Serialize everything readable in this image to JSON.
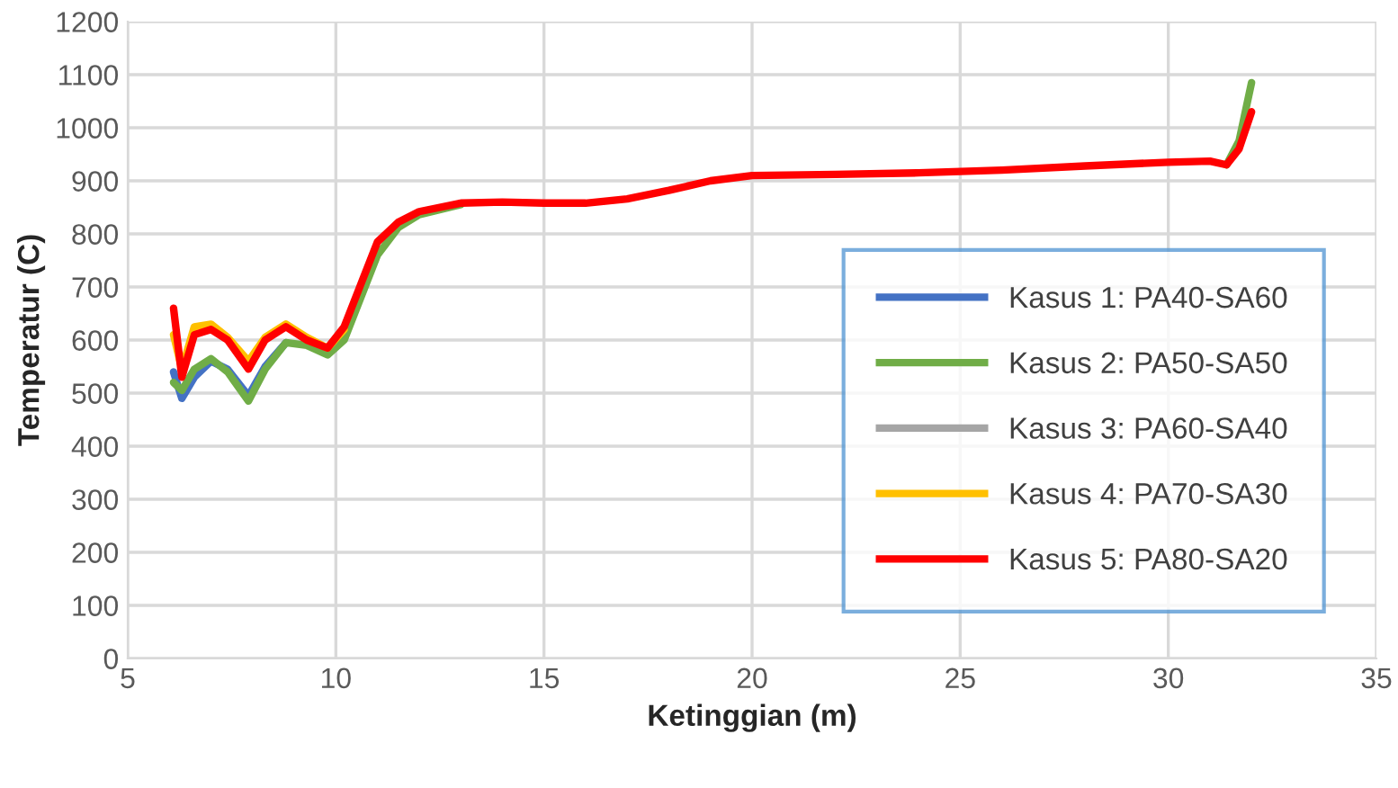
{
  "chart_data": {
    "type": "line",
    "xlabel": "Ketinggian (m)",
    "ylabel": "Temperatur (C)",
    "xlim": [
      5,
      35
    ],
    "xticks": [
      5,
      10,
      15,
      20,
      25,
      30,
      35
    ],
    "ylim": [
      0,
      1200
    ],
    "yticks": [
      0,
      100,
      200,
      300,
      400,
      500,
      600,
      700,
      800,
      900,
      1000,
      1100,
      1200
    ],
    "grid": true,
    "legend": "bottom right",
    "marker": "none",
    "line_style": "solid",
    "x": [
      6.1,
      6.3,
      6.6,
      7,
      7.4,
      7.9,
      8.3,
      8.8,
      9.3,
      9.8,
      10.2,
      10.6,
      11,
      11.5,
      12,
      13,
      14,
      15,
      16,
      17,
      18,
      19,
      20,
      22,
      24,
      26,
      28,
      30,
      31,
      31.4,
      31.7,
      32
    ],
    "series": [
      {
        "name": "Kasus 1: PA40-SA60",
        "color": "#4472c4",
        "values": [
          540,
          490,
          530,
          560,
          545,
          495,
          550,
          595,
          null,
          null,
          null,
          null,
          null,
          null,
          null,
          null,
          null,
          null,
          null,
          null,
          null,
          null,
          null,
          null,
          null,
          null,
          null,
          null,
          null,
          null,
          null,
          null
        ]
      },
      {
        "name": "Kasus 2: PA50-SA50",
        "color": "#70ad47",
        "values": [
          520,
          505,
          545,
          565,
          540,
          485,
          545,
          595,
          590,
          572,
          600,
          680,
          760,
          812,
          836,
          855,
          null,
          null,
          null,
          null,
          null,
          null,
          null,
          null,
          null,
          null,
          null,
          null,
          null,
          930,
          975,
          1085
        ]
      },
      {
        "name": "Kasus 3: PA60-SA40",
        "color": "#a5a5a5",
        "values": [
          null,
          null,
          null,
          null,
          null,
          null,
          null,
          null,
          null,
          null,
          null,
          null,
          null,
          null,
          null,
          null,
          null,
          null,
          null,
          null,
          null,
          null,
          null,
          null,
          null,
          null,
          null,
          null,
          null,
          null,
          null,
          null
        ]
      },
      {
        "name": "Kasus 4: PA70-SA30",
        "color": "#ffc000",
        "values": [
          610,
          545,
          625,
          630,
          605,
          560,
          605,
          630,
          605,
          585,
          620,
          null,
          null,
          null,
          null,
          null,
          null,
          null,
          null,
          null,
          null,
          null,
          null,
          null,
          null,
          null,
          null,
          null,
          null,
          null,
          null,
          null
        ]
      },
      {
        "name": "Kasus 5: PA80-SA20",
        "color": "#ff0000",
        "values": [
          660,
          530,
          610,
          620,
          600,
          545,
          600,
          625,
          600,
          585,
          625,
          705,
          785,
          822,
          842,
          858,
          860,
          858,
          858,
          866,
          882,
          900,
          910,
          912,
          915,
          920,
          928,
          935,
          937,
          930,
          960,
          1030
        ]
      }
    ]
  }
}
